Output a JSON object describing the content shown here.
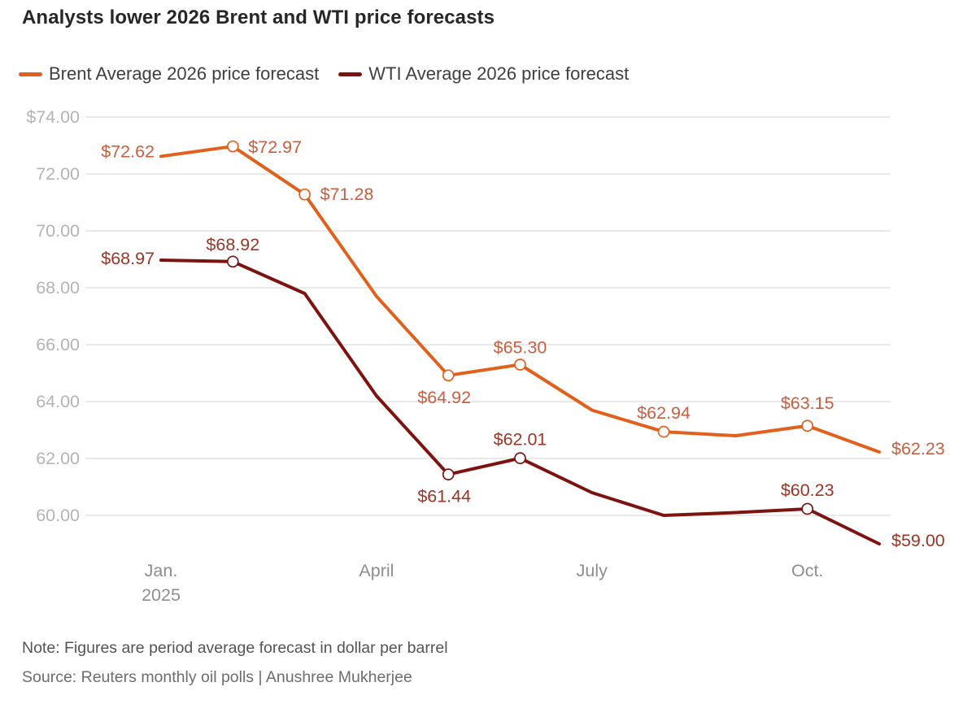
{
  "note": "Note: Figures are period average forecast in dollar per barrel",
  "source": "Source: Reuters monthly oil polls | Anushree Mukherjee",
  "chart_data": {
    "type": "line",
    "title": "Analysts lower 2026 Brent and WTI price forecasts",
    "x_unit": "month",
    "x": [
      "Jan 2025",
      "Feb 2025",
      "Mar 2025",
      "Apr 2025",
      "May 2025",
      "Jun 2025",
      "Jul 2025",
      "Aug 2025",
      "Sep 2025",
      "Oct 2025",
      "Nov 2025"
    ],
    "ylim": [
      59.0,
      74.0
    ],
    "grid": true,
    "legend_position": "top-left",
    "grid_color": "#dcdcdc",
    "ytick_color": "#b4b4b4",
    "xtick_color": "#8e8e8e",
    "yticks": [
      {
        "value": 74,
        "label": "$74.00"
      },
      {
        "value": 72,
        "label": "72.00"
      },
      {
        "value": 70,
        "label": "70.00"
      },
      {
        "value": 68,
        "label": "68.00"
      },
      {
        "value": 66,
        "label": "66.00"
      },
      {
        "value": 64,
        "label": "64.00"
      },
      {
        "value": 62,
        "label": "62.00"
      },
      {
        "value": 60,
        "label": "60.00"
      }
    ],
    "xticks": [
      {
        "month": 0,
        "label": "Jan.",
        "sublabel": "2025"
      },
      {
        "month": 3,
        "label": "April"
      },
      {
        "month": 6,
        "label": "July"
      },
      {
        "month": 9,
        "label": "Oct."
      }
    ],
    "series": [
      {
        "id": "brent",
        "name": "Brent Average 2026 price forecast",
        "color": "#e2601b",
        "label_color": "#c75f40",
        "points": [
          {
            "value": 72.62,
            "label": "$72.62",
            "marker": false,
            "anchor": "end",
            "dx": -8,
            "dy": 1
          },
          {
            "value": 72.97,
            "label": "$72.97",
            "marker": true,
            "anchor": "start",
            "dx": 19,
            "dy": 8
          },
          {
            "value": 71.28,
            "label": "$71.28",
            "marker": true,
            "anchor": "start",
            "dx": 19,
            "dy": 7
          },
          {
            "value": 67.7,
            "label": null,
            "marker": false
          },
          {
            "value": 64.92,
            "label": "$64.92",
            "marker": true,
            "anchor": "middle",
            "dx": -5,
            "dy": 34
          },
          {
            "value": 65.3,
            "label": "$65.30",
            "marker": true,
            "anchor": "middle",
            "dx": 0,
            "dy": -14
          },
          {
            "value": 63.7,
            "label": null,
            "marker": false
          },
          {
            "value": 62.94,
            "label": "$62.94",
            "marker": true,
            "anchor": "middle",
            "dx": 0,
            "dy": -16
          },
          {
            "value": 62.8,
            "label": null,
            "marker": false
          },
          {
            "value": 63.15,
            "label": "$63.15",
            "marker": true,
            "anchor": "middle",
            "dx": 0,
            "dy": -21
          },
          {
            "value": 62.23,
            "label": "$62.23",
            "marker": false,
            "anchor": "start",
            "dx": 15,
            "dy": 3
          }
        ]
      },
      {
        "id": "wti",
        "name": "WTI Average 2026 price forecast",
        "color": "#7e120f",
        "label_color": "#993627",
        "points": [
          {
            "value": 68.97,
            "label": "$68.97",
            "marker": false,
            "anchor": "end",
            "dx": -8,
            "dy": 5
          },
          {
            "value": 68.92,
            "label": "$68.92",
            "marker": true,
            "anchor": "middle",
            "dx": 0,
            "dy": -14
          },
          {
            "value": 67.8,
            "label": null,
            "marker": false
          },
          {
            "value": 64.2,
            "label": null,
            "marker": false
          },
          {
            "value": 61.44,
            "label": "$61.44",
            "marker": true,
            "anchor": "middle",
            "dx": -5,
            "dy": 34
          },
          {
            "value": 62.01,
            "label": "$62.01",
            "marker": true,
            "anchor": "middle",
            "dx": 0,
            "dy": -16
          },
          {
            "value": 60.8,
            "label": null,
            "marker": false
          },
          {
            "value": 60.0,
            "label": null,
            "marker": false
          },
          {
            "value": 60.1,
            "label": null,
            "marker": false
          },
          {
            "value": 60.23,
            "label": "$60.23",
            "marker": true,
            "anchor": "middle",
            "dx": 0,
            "dy": -16
          },
          {
            "value": 59.0,
            "label": "$59.00",
            "marker": false,
            "anchor": "start",
            "dx": 15,
            "dy": 3
          }
        ]
      }
    ]
  }
}
